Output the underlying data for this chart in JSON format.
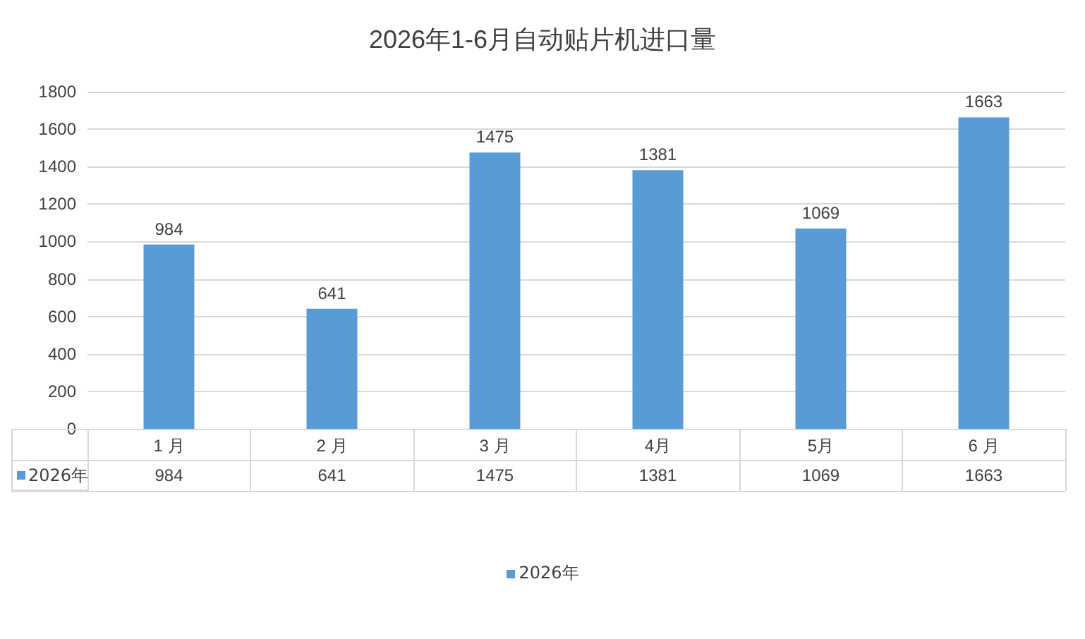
{
  "chart_data": {
    "type": "bar",
    "title": "2026年1-6月自动贴片机进口量",
    "categories": [
      "1 月",
      "2 月",
      "3 月",
      "4月",
      "5月",
      "6 月"
    ],
    "series": [
      {
        "name": "2026年",
        "color": "#5b9bd5",
        "values": [
          984,
          641,
          1475,
          1381,
          1069,
          1663
        ],
        "value_labels": [
          "984",
          "641",
          "1475",
          "1381",
          "1069",
          "1663"
        ]
      }
    ],
    "ylim": [
      0,
      1800
    ],
    "yticks": [
      0,
      200,
      400,
      600,
      800,
      1000,
      1200,
      1400,
      1600,
      1800
    ],
    "annotations": [
      "984",
      "641",
      "1475",
      "1381",
      "1069",
      "1663"
    ],
    "grid": "y",
    "legend": "bottom",
    "data_labels": true
  }
}
